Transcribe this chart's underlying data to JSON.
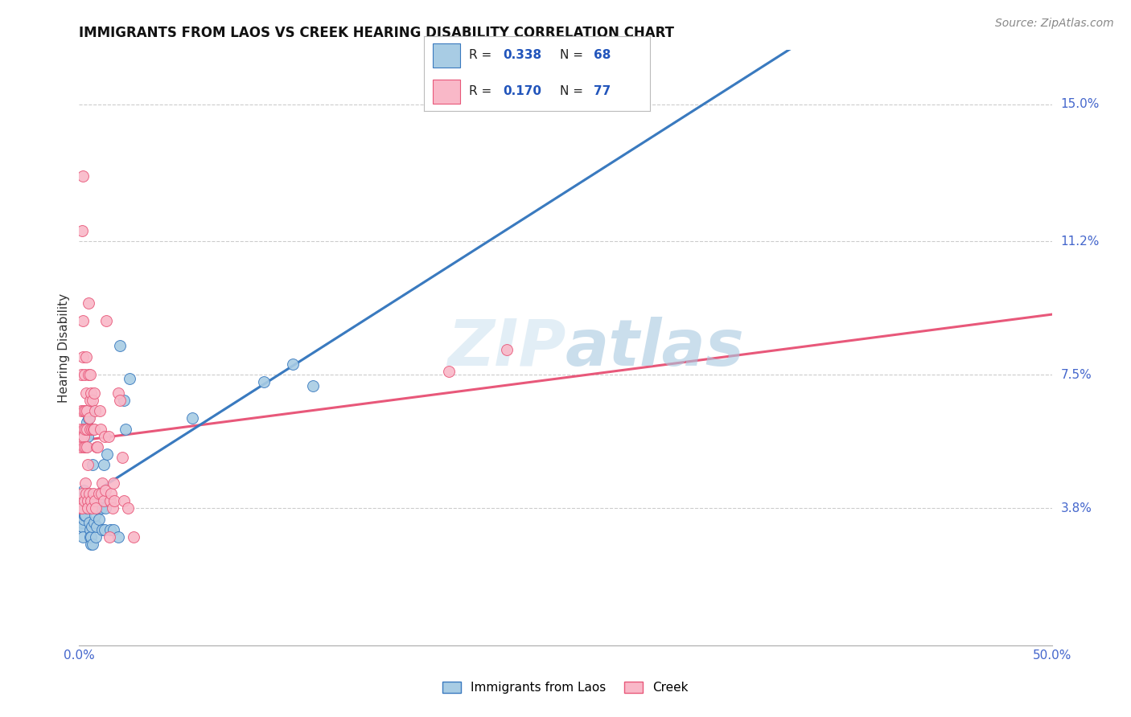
{
  "title": "IMMIGRANTS FROM LAOS VS CREEK HEARING DISABILITY CORRELATION CHART",
  "source": "Source: ZipAtlas.com",
  "ylabel": "Hearing Disability",
  "ytick_labels": [
    "3.8%",
    "7.5%",
    "11.2%",
    "15.0%"
  ],
  "ytick_values": [
    0.038,
    0.075,
    0.112,
    0.15
  ],
  "xlim": [
    0.0,
    0.5
  ],
  "ylim": [
    0.0,
    0.165
  ],
  "R_blue": 0.338,
  "N_blue": 68,
  "R_pink": 0.17,
  "N_pink": 77,
  "color_blue": "#a8cce4",
  "color_pink": "#f9b8c8",
  "trendline_blue": "#3a7abf",
  "trendline_pink": "#e8587a",
  "trendline_blue_dash": "#a0c4e8",
  "watermark_color": "#d0e4f0",
  "blue_points": [
    [
      0.0008,
      0.038
    ],
    [
      0.0009,
      0.036
    ],
    [
      0.001,
      0.035
    ],
    [
      0.001,
      0.033
    ],
    [
      0.0012,
      0.04
    ],
    [
      0.0013,
      0.038
    ],
    [
      0.0015,
      0.036
    ],
    [
      0.0015,
      0.034
    ],
    [
      0.0016,
      0.033
    ],
    [
      0.0017,
      0.03
    ],
    [
      0.0018,
      0.042
    ],
    [
      0.002,
      0.038
    ],
    [
      0.0021,
      0.037
    ],
    [
      0.0022,
      0.042
    ],
    [
      0.0023,
      0.04
    ],
    [
      0.0024,
      0.043
    ],
    [
      0.0025,
      0.035
    ],
    [
      0.0026,
      0.037
    ],
    [
      0.0027,
      0.038
    ],
    [
      0.0028,
      0.036
    ],
    [
      0.003,
      0.058
    ],
    [
      0.0031,
      0.038
    ],
    [
      0.0032,
      0.04
    ],
    [
      0.0033,
      0.036
    ],
    [
      0.0035,
      0.058
    ],
    [
      0.0036,
      0.055
    ],
    [
      0.0038,
      0.038
    ],
    [
      0.004,
      0.06
    ],
    [
      0.0041,
      0.062
    ],
    [
      0.0045,
      0.058
    ],
    [
      0.0046,
      0.06
    ],
    [
      0.0048,
      0.063
    ],
    [
      0.005,
      0.065
    ],
    [
      0.0052,
      0.06
    ],
    [
      0.0054,
      0.034
    ],
    [
      0.0055,
      0.032
    ],
    [
      0.0058,
      0.03
    ],
    [
      0.006,
      0.028
    ],
    [
      0.0062,
      0.03
    ],
    [
      0.0065,
      0.033
    ],
    [
      0.0068,
      0.028
    ],
    [
      0.007,
      0.05
    ],
    [
      0.0075,
      0.034
    ],
    [
      0.008,
      0.04
    ],
    [
      0.0082,
      0.036
    ],
    [
      0.0085,
      0.03
    ],
    [
      0.0088,
      0.033
    ],
    [
      0.0092,
      0.038
    ],
    [
      0.01,
      0.035
    ],
    [
      0.011,
      0.04
    ],
    [
      0.0115,
      0.038
    ],
    [
      0.012,
      0.032
    ],
    [
      0.0125,
      0.05
    ],
    [
      0.013,
      0.032
    ],
    [
      0.0135,
      0.038
    ],
    [
      0.0145,
      0.053
    ],
    [
      0.015,
      0.04
    ],
    [
      0.016,
      0.032
    ],
    [
      0.0175,
      0.032
    ],
    [
      0.02,
      0.03
    ],
    [
      0.021,
      0.083
    ],
    [
      0.023,
      0.068
    ],
    [
      0.024,
      0.06
    ],
    [
      0.026,
      0.074
    ],
    [
      0.058,
      0.063
    ],
    [
      0.095,
      0.073
    ],
    [
      0.11,
      0.078
    ],
    [
      0.12,
      0.072
    ]
  ],
  "pink_points": [
    [
      0.0005,
      0.06
    ],
    [
      0.0006,
      0.055
    ],
    [
      0.0007,
      0.038
    ],
    [
      0.0008,
      0.04
    ],
    [
      0.001,
      0.075
    ],
    [
      0.0011,
      0.065
    ],
    [
      0.0012,
      0.058
    ],
    [
      0.0013,
      0.042
    ],
    [
      0.0014,
      0.038
    ],
    [
      0.0016,
      0.115
    ],
    [
      0.0018,
      0.08
    ],
    [
      0.002,
      0.13
    ],
    [
      0.0021,
      0.09
    ],
    [
      0.0022,
      0.065
    ],
    [
      0.0023,
      0.06
    ],
    [
      0.0024,
      0.058
    ],
    [
      0.0025,
      0.055
    ],
    [
      0.0026,
      0.04
    ],
    [
      0.0028,
      0.075
    ],
    [
      0.003,
      0.065
    ],
    [
      0.0031,
      0.06
    ],
    [
      0.0032,
      0.055
    ],
    [
      0.0033,
      0.045
    ],
    [
      0.0034,
      0.042
    ],
    [
      0.0035,
      0.08
    ],
    [
      0.0037,
      0.07
    ],
    [
      0.0038,
      0.065
    ],
    [
      0.0039,
      0.06
    ],
    [
      0.004,
      0.055
    ],
    [
      0.0042,
      0.05
    ],
    [
      0.0043,
      0.04
    ],
    [
      0.0044,
      0.038
    ],
    [
      0.0046,
      0.095
    ],
    [
      0.0048,
      0.075
    ],
    [
      0.005,
      0.063
    ],
    [
      0.0052,
      0.042
    ],
    [
      0.0055,
      0.075
    ],
    [
      0.0057,
      0.068
    ],
    [
      0.0058,
      0.06
    ],
    [
      0.006,
      0.04
    ],
    [
      0.0062,
      0.07
    ],
    [
      0.0064,
      0.06
    ],
    [
      0.0066,
      0.038
    ],
    [
      0.007,
      0.068
    ],
    [
      0.0072,
      0.06
    ],
    [
      0.0074,
      0.042
    ],
    [
      0.0076,
      0.07
    ],
    [
      0.0078,
      0.06
    ],
    [
      0.008,
      0.04
    ],
    [
      0.0082,
      0.065
    ],
    [
      0.0085,
      0.038
    ],
    [
      0.009,
      0.055
    ],
    [
      0.0095,
      0.055
    ],
    [
      0.01,
      0.042
    ],
    [
      0.0105,
      0.065
    ],
    [
      0.011,
      0.06
    ],
    [
      0.0115,
      0.042
    ],
    [
      0.012,
      0.045
    ],
    [
      0.0125,
      0.04
    ],
    [
      0.013,
      0.058
    ],
    [
      0.0135,
      0.043
    ],
    [
      0.014,
      0.09
    ],
    [
      0.015,
      0.058
    ],
    [
      0.0155,
      0.03
    ],
    [
      0.016,
      0.04
    ],
    [
      0.0165,
      0.042
    ],
    [
      0.017,
      0.038
    ],
    [
      0.0175,
      0.045
    ],
    [
      0.018,
      0.04
    ],
    [
      0.02,
      0.07
    ],
    [
      0.021,
      0.068
    ],
    [
      0.022,
      0.052
    ],
    [
      0.023,
      0.04
    ],
    [
      0.025,
      0.038
    ],
    [
      0.028,
      0.03
    ],
    [
      0.19,
      0.076
    ],
    [
      0.22,
      0.082
    ]
  ]
}
